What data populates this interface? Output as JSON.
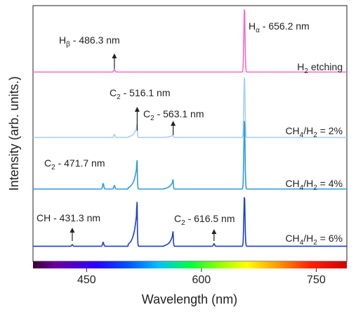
{
  "chart_data": {
    "type": "line",
    "xlabel": "Wavelength (nm)",
    "ylabel": "Intensity (arb. units.)",
    "xlim": [
      380,
      790
    ],
    "xticks": [
      450,
      600,
      750
    ],
    "x_tick_labels": [
      "450",
      "600",
      "750"
    ],
    "spectrum_bar_range": [
      380,
      790
    ],
    "series": [
      {
        "name": "H2 etching",
        "label_parts": [
          {
            "t": "H"
          },
          {
            "t": "2",
            "sub": true
          },
          {
            "t": " etching"
          }
        ],
        "color": "#ef6fc8",
        "baseline": 0.06,
        "peaks": [
          {
            "x": 486.3,
            "h": 0.04
          },
          {
            "x": 656.2,
            "h": 1.0
          }
        ]
      },
      {
        "name": "CH4/H2 = 2%",
        "label_parts": [
          {
            "t": "CH"
          },
          {
            "t": "4",
            "sub": true
          },
          {
            "t": "/H"
          },
          {
            "t": "2",
            "sub": true
          },
          {
            "t": " = 2%"
          }
        ],
        "color": "#a9cff2",
        "baseline": 0.05,
        "peaks": [
          {
            "x": 486.3,
            "h": 0.05
          },
          {
            "x": 516.1,
            "h": 0.22
          },
          {
            "x": 563.1,
            "h": 0.05
          },
          {
            "x": 656.2,
            "h": 1.0
          }
        ]
      },
      {
        "name": "CH4/H2 = 4%",
        "label_parts": [
          {
            "t": "CH"
          },
          {
            "t": "4",
            "sub": true
          },
          {
            "t": "/H"
          },
          {
            "t": "2",
            "sub": true
          },
          {
            "t": " = 4%"
          }
        ],
        "color": "#2f9be0",
        "baseline": 0.05,
        "peaks": [
          {
            "x": 471.7,
            "h": 0.08
          },
          {
            "x": 486.3,
            "h": 0.05
          },
          {
            "x": 516.1,
            "h": 0.42
          },
          {
            "x": 563.1,
            "h": 0.14
          },
          {
            "x": 656.2,
            "h": 1.0
          }
        ]
      },
      {
        "name": "CH4/H2 = 6%",
        "label_parts": [
          {
            "t": "CH"
          },
          {
            "t": "4",
            "sub": true
          },
          {
            "t": "/H"
          },
          {
            "t": "2",
            "sub": true
          },
          {
            "t": " = 6%"
          }
        ],
        "color": "#1f3fcf",
        "baseline": 0.05,
        "peaks": [
          {
            "x": 431.3,
            "h": 0.03
          },
          {
            "x": 471.7,
            "h": 0.08
          },
          {
            "x": 516.1,
            "h": 0.9
          },
          {
            "x": 563.1,
            "h": 0.3
          },
          {
            "x": 616.5,
            "h": 0.05
          },
          {
            "x": 656.2,
            "h": 1.0
          }
        ]
      }
    ],
    "annotations": [
      {
        "parts": [
          {
            "t": "H"
          },
          {
            "t": "α",
            "sub": true
          },
          {
            "t": " - 656.2 nm"
          }
        ],
        "x": 656.2,
        "series": "H2 etching",
        "arrow": false
      },
      {
        "parts": [
          {
            "t": "H"
          },
          {
            "t": "β",
            "sub": true
          },
          {
            "t": " - 486.3 nm"
          }
        ],
        "x": 486.3,
        "series": "H2 etching",
        "arrow": true
      },
      {
        "parts": [
          {
            "t": "C"
          },
          {
            "t": "2",
            "sub": true
          },
          {
            "t": " - 516.1 nm"
          }
        ],
        "x": 516.1,
        "series": "CH4/H2 = 2%",
        "arrow": true
      },
      {
        "parts": [
          {
            "t": "C"
          },
          {
            "t": "2",
            "sub": true
          },
          {
            "t": " - 563.1 nm"
          }
        ],
        "x": 563.1,
        "series": "CH4/H2 = 2%",
        "arrow": true
      },
      {
        "parts": [
          {
            "t": "C"
          },
          {
            "t": "2",
            "sub": true
          },
          {
            "t": " - 471.7 nm"
          }
        ],
        "x": 471.7,
        "series": "CH4/H2 = 4%",
        "arrow": false
      },
      {
        "parts": [
          {
            "t": "CH - 431.3 nm"
          }
        ],
        "x": 431.3,
        "series": "CH4/H2 = 6%",
        "arrow": true
      },
      {
        "parts": [
          {
            "t": "C"
          },
          {
            "t": "2",
            "sub": true
          },
          {
            "t": " - 616.5 nm"
          }
        ],
        "x": 616.5,
        "series": "CH4/H2 = 6%",
        "arrow": true
      }
    ]
  }
}
